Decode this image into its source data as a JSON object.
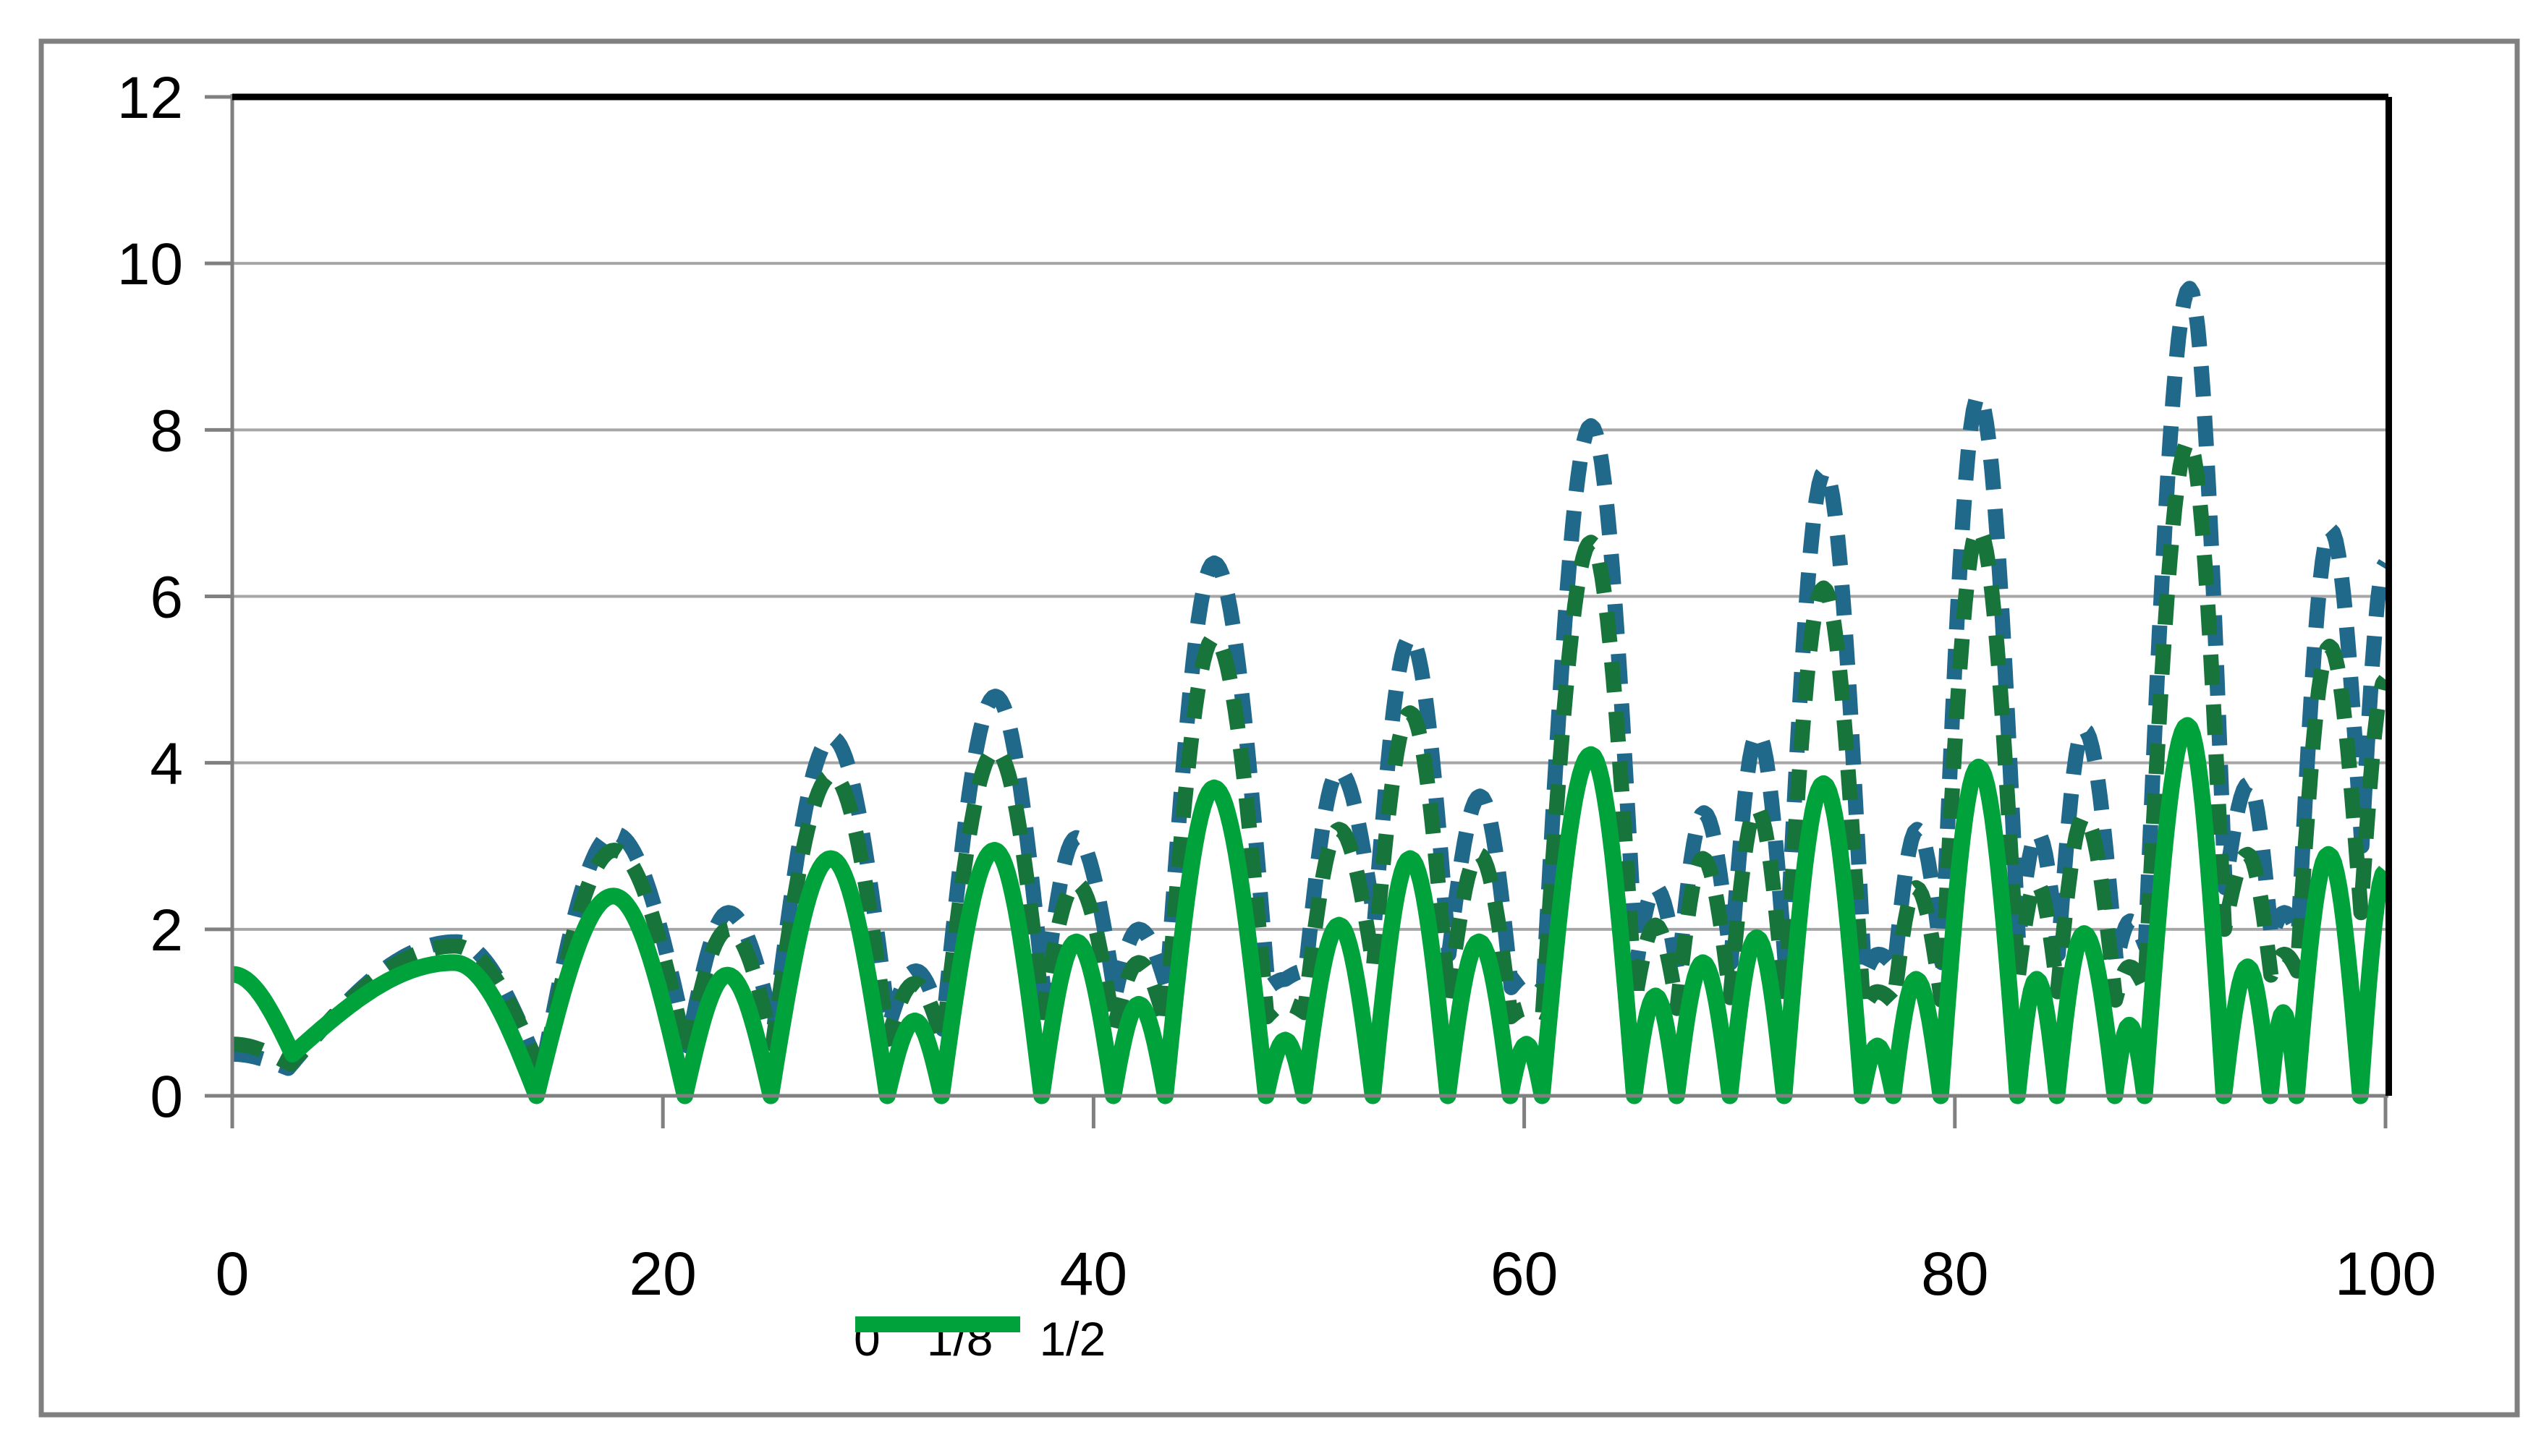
{
  "chart_data": {
    "type": "line",
    "title": "",
    "xlabel": "",
    "ylabel": "",
    "xlim": [
      0,
      100
    ],
    "ylim": [
      0,
      12
    ],
    "x_ticks": [
      "0",
      "20",
      "40",
      "60",
      "80",
      "100"
    ],
    "x_tick_values": [
      0,
      20,
      40,
      60,
      80,
      100
    ],
    "y_ticks": [
      "0",
      "2",
      "4",
      "6",
      "8",
      "10",
      "12"
    ],
    "y_tick_values": [
      0,
      2,
      4,
      6,
      8,
      10,
      12
    ],
    "grid": "horizontal-gray",
    "legend_position": "bottom-center",
    "axis_color": "#808080",
    "grid_color": "#A6A6A6",
    "border_color": "#000000",
    "frame_color": "#808080",
    "series": [
      {
        "name": "0",
        "color": "#21698B",
        "style": "dashed",
        "points": [
          [
            0,
            0.5
          ],
          [
            2.6,
            0.33
          ],
          [
            10.4,
            1.85
          ],
          [
            14.35,
            0.26
          ],
          [
            17.75,
            3.15
          ],
          [
            21.15,
            0.6
          ],
          [
            23.05,
            2.2
          ],
          [
            25.15,
            0.8
          ],
          [
            27.85,
            4.3
          ],
          [
            30.5,
            0.85
          ],
          [
            31.75,
            1.5
          ],
          [
            33.0,
            0.8
          ],
          [
            35.45,
            4.8
          ],
          [
            37.7,
            1.22
          ],
          [
            39.2,
            3.1
          ],
          [
            41.0,
            1.2
          ],
          [
            42.1,
            2.0
          ],
          [
            43.4,
            1.3
          ],
          [
            45.6,
            6.4
          ],
          [
            48.1,
            1.3
          ],
          [
            48.9,
            1.4
          ],
          [
            49.85,
            1.5
          ],
          [
            51.4,
            3.9
          ],
          [
            53.05,
            2.1
          ],
          [
            54.7,
            5.5
          ],
          [
            56.5,
            1.7
          ],
          [
            57.95,
            3.6
          ],
          [
            59.4,
            1.3
          ],
          [
            60.15,
            1.45
          ],
          [
            60.9,
            1.35
          ],
          [
            63.1,
            8.05
          ],
          [
            65.2,
            1.55
          ],
          [
            66.1,
            2.5
          ],
          [
            67.15,
            1.45
          ],
          [
            68.35,
            3.4
          ],
          [
            69.6,
            1.6
          ],
          [
            70.85,
            4.35
          ],
          [
            72.15,
            1.5
          ],
          [
            73.95,
            7.5
          ],
          [
            75.8,
            1.45
          ],
          [
            76.45,
            1.7
          ],
          [
            77.2,
            1.55
          ],
          [
            78.25,
            3.2
          ],
          [
            79.4,
            1.6
          ],
          [
            81.1,
            8.4
          ],
          [
            82.95,
            1.85
          ],
          [
            83.85,
            3.15
          ],
          [
            84.8,
            1.7
          ],
          [
            86.0,
            4.4
          ],
          [
            87.5,
            1.6
          ],
          [
            88.15,
            2.1
          ],
          [
            88.85,
            1.8
          ],
          [
            90.9,
            9.7
          ],
          [
            92.55,
            2.5
          ],
          [
            93.65,
            3.75
          ],
          [
            94.7,
            1.9
          ],
          [
            95.3,
            2.2
          ],
          [
            95.95,
            1.95
          ],
          [
            97.45,
            6.8
          ],
          [
            98.9,
            3.0
          ],
          [
            100,
            6.4
          ]
        ]
      },
      {
        "name": "1/8",
        "color": "#17753B",
        "style": "dashed",
        "points": [
          [
            0,
            0.62
          ],
          [
            2.7,
            0.38
          ],
          [
            10.35,
            1.8
          ],
          [
            14.4,
            0.25
          ],
          [
            17.75,
            2.95
          ],
          [
            21.1,
            0.5
          ],
          [
            23.05,
            2.0
          ],
          [
            25.1,
            0.62
          ],
          [
            27.85,
            3.85
          ],
          [
            30.45,
            0.68
          ],
          [
            31.7,
            1.35
          ],
          [
            33.0,
            0.65
          ],
          [
            35.45,
            4.15
          ],
          [
            37.65,
            1.0
          ],
          [
            39.2,
            2.55
          ],
          [
            40.95,
            0.8
          ],
          [
            42.1,
            1.6
          ],
          [
            43.35,
            0.85
          ],
          [
            45.6,
            5.5
          ],
          [
            48.05,
            0.95
          ],
          [
            48.9,
            1.1
          ],
          [
            49.8,
            1.0
          ],
          [
            51.4,
            3.2
          ],
          [
            53.0,
            1.55
          ],
          [
            54.7,
            4.6
          ],
          [
            56.48,
            1.15
          ],
          [
            57.9,
            2.9
          ],
          [
            59.38,
            0.95
          ],
          [
            60.12,
            1.05
          ],
          [
            60.86,
            1.0
          ],
          [
            63.1,
            6.65
          ],
          [
            65.15,
            1.15
          ],
          [
            66.1,
            2.05
          ],
          [
            67.1,
            1.05
          ],
          [
            68.3,
            2.85
          ],
          [
            69.57,
            1.18
          ],
          [
            70.8,
            3.45
          ],
          [
            72.1,
            1.1
          ],
          [
            73.9,
            6.1
          ],
          [
            75.75,
            1.05
          ],
          [
            76.4,
            1.25
          ],
          [
            77.17,
            1.12
          ],
          [
            78.2,
            2.5
          ],
          [
            79.37,
            1.15
          ],
          [
            81.1,
            6.8
          ],
          [
            82.93,
            1.4
          ],
          [
            83.8,
            2.55
          ],
          [
            84.77,
            1.25
          ],
          [
            86.0,
            3.35
          ],
          [
            87.46,
            1.15
          ],
          [
            88.1,
            1.55
          ],
          [
            88.83,
            1.3
          ],
          [
            90.85,
            7.85
          ],
          [
            92.52,
            2.0
          ],
          [
            93.6,
            2.9
          ],
          [
            94.68,
            1.45
          ],
          [
            95.3,
            1.7
          ],
          [
            95.9,
            1.5
          ],
          [
            97.4,
            5.4
          ],
          [
            98.86,
            2.2
          ],
          [
            100,
            5.0
          ]
        ]
      },
      {
        "name": "1/2",
        "color": "#00A23C",
        "style": "solid",
        "points": [
          [
            0,
            1.46
          ],
          [
            2.8,
            0.5
          ],
          [
            10.3,
            1.6
          ],
          [
            14.13,
            0
          ],
          [
            17.7,
            2.4
          ],
          [
            21.02,
            0
          ],
          [
            23.0,
            1.45
          ],
          [
            25.01,
            0
          ],
          [
            27.8,
            2.85
          ],
          [
            30.42,
            0
          ],
          [
            31.7,
            0.9
          ],
          [
            32.94,
            0
          ],
          [
            35.4,
            2.95
          ],
          [
            37.59,
            0
          ],
          [
            39.2,
            1.85
          ],
          [
            40.92,
            0
          ],
          [
            42.1,
            1.1
          ],
          [
            43.33,
            0
          ],
          [
            45.6,
            3.7
          ],
          [
            48.01,
            0
          ],
          [
            48.9,
            0.67
          ],
          [
            49.77,
            0
          ],
          [
            51.4,
            2.05
          ],
          [
            52.97,
            0
          ],
          [
            54.7,
            2.85
          ],
          [
            56.45,
            0
          ],
          [
            57.9,
            1.85
          ],
          [
            59.35,
            0
          ],
          [
            60.1,
            0.62
          ],
          [
            60.83,
            0
          ],
          [
            63.1,
            4.1
          ],
          [
            65.11,
            0
          ],
          [
            66.1,
            1.2
          ],
          [
            67.08,
            0
          ],
          [
            68.3,
            1.6
          ],
          [
            69.55,
            0
          ],
          [
            70.8,
            1.9
          ],
          [
            72.07,
            0
          ],
          [
            73.9,
            3.75
          ],
          [
            75.7,
            0
          ],
          [
            76.4,
            0.6
          ],
          [
            77.14,
            0
          ],
          [
            78.2,
            1.4
          ],
          [
            79.34,
            0
          ],
          [
            81.1,
            3.95
          ],
          [
            82.91,
            0
          ],
          [
            83.8,
            1.4
          ],
          [
            84.74,
            0
          ],
          [
            86.0,
            1.95
          ],
          [
            87.43,
            0
          ],
          [
            88.1,
            0.85
          ],
          [
            88.81,
            0
          ],
          [
            90.8,
            4.45
          ],
          [
            92.49,
            0
          ],
          [
            93.6,
            1.55
          ],
          [
            94.65,
            0
          ],
          [
            95.25,
            1.0
          ],
          [
            95.87,
            0
          ],
          [
            97.35,
            2.9
          ],
          [
            98.83,
            0
          ],
          [
            100,
            2.7
          ]
        ]
      }
    ]
  },
  "legend": {
    "items": [
      {
        "label": "0"
      },
      {
        "label": "1/8"
      },
      {
        "label": "1/2"
      }
    ]
  }
}
